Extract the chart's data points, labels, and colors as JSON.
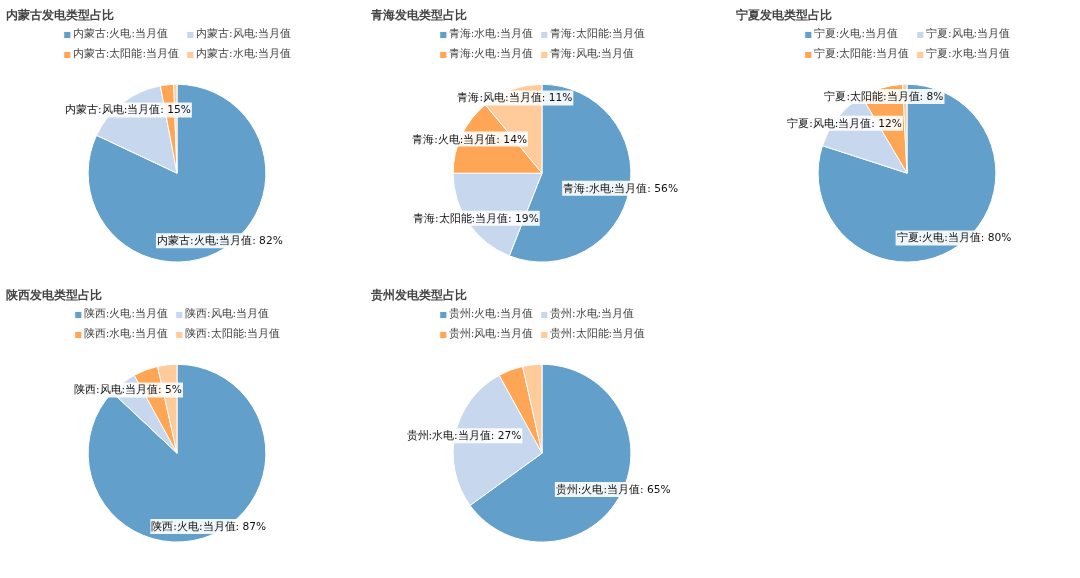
{
  "chart_data": [
    {
      "type": "pie",
      "title": "内蒙古发电类型占比",
      "categories": [
        "内蒙古:火电:当月值",
        "内蒙古:风电:当月值",
        "内蒙古:太阳能:当月值",
        "内蒙古:水电:当月值"
      ],
      "values": [
        82,
        15,
        2.4,
        0.6
      ],
      "value_labels": [
        "内蒙古:火电:当月值: 82%",
        "内蒙古:风电:当月值: 15%",
        null,
        null
      ],
      "colors": [
        "#62a0cb",
        "#c7d8ee",
        "#ffa556",
        "#ffcb9a"
      ],
      "legend": "top"
    },
    {
      "type": "pie",
      "title": "青海发电类型占比",
      "categories": [
        "青海:水电:当月值",
        "青海:太阳能:当月值",
        "青海:火电:当月值",
        "青海:风电:当月值"
      ],
      "values": [
        56,
        19,
        14,
        11
      ],
      "value_labels": [
        "青海:水电:当月值: 56%",
        "青海:太阳能:当月值: 19%",
        "青海:火电:当月值: 14%",
        "青海:风电:当月值: 11%"
      ],
      "colors": [
        "#62a0cb",
        "#c7d8ee",
        "#ffa556",
        "#ffcb9a"
      ],
      "legend": "top"
    },
    {
      "type": "pie",
      "title": "宁夏发电类型占比",
      "categories": [
        "宁夏:火电:当月值",
        "宁夏:风电:当月值",
        "宁夏:太阳能:当月值",
        "宁夏:水电:当月值"
      ],
      "values": [
        80,
        11.5,
        7.7,
        0.8
      ],
      "value_labels": [
        "宁夏:火电:当月值: 80%",
        "宁夏:风电:当月值: 12%",
        "宁夏:太阳能:当月值: 8%",
        null
      ],
      "colors": [
        "#62a0cb",
        "#c7d8ee",
        "#ffa556",
        "#ffcb9a"
      ],
      "legend": "top"
    },
    {
      "type": "pie",
      "title": "陕西发电类型占比",
      "categories": [
        "陕西:火电:当月值",
        "陕西:风电:当月值",
        "陕西:水电:当月值",
        "陕西:太阳能:当月值"
      ],
      "values": [
        87,
        5,
        4.5,
        3.5
      ],
      "value_labels": [
        "陕西:火电:当月值: 87%",
        "陕西:风电:当月值: 5%",
        null,
        null
      ],
      "colors": [
        "#62a0cb",
        "#c7d8ee",
        "#ffa556",
        "#ffcb9a"
      ],
      "legend": "top"
    },
    {
      "type": "pie",
      "title": "贵州发电类型占比",
      "categories": [
        "贵州:火电:当月值",
        "贵州:水电:当月值",
        "贵州:风电:当月值",
        "贵州:太阳能:当月值"
      ],
      "values": [
        65,
        27,
        4.5,
        3.5
      ],
      "value_labels": [
        "贵州:火电:当月值: 65%",
        "贵州:水电:当月值: 27%",
        null,
        null
      ],
      "colors": [
        "#62a0cb",
        "#c7d8ee",
        "#ffa556",
        "#ffcb9a"
      ],
      "legend": "top"
    }
  ]
}
